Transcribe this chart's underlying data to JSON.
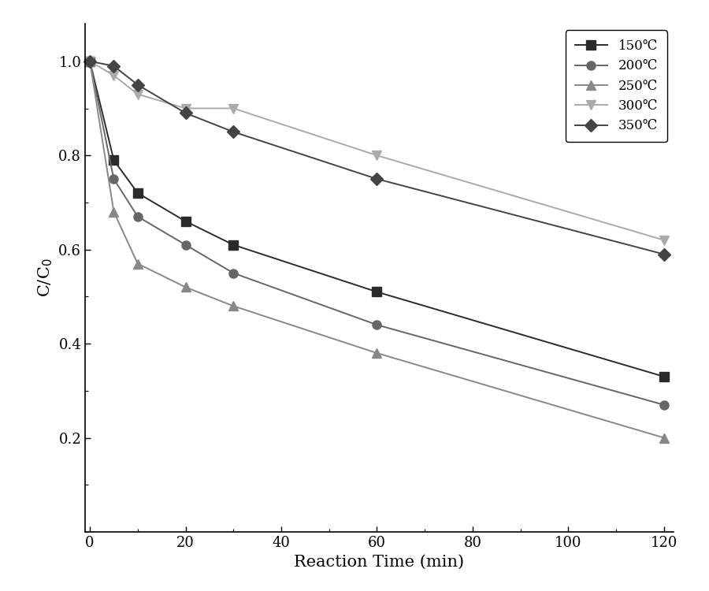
{
  "series": [
    {
      "label": "150℃",
      "color": "#2b2b2b",
      "marker": "s",
      "markersize": 8,
      "linewidth": 1.4,
      "linestyle": "-",
      "x": [
        0,
        5,
        10,
        20,
        30,
        60,
        120
      ],
      "y": [
        1.0,
        0.79,
        0.72,
        0.66,
        0.61,
        0.51,
        0.33
      ]
    },
    {
      "label": "200℃",
      "color": "#666666",
      "marker": "o",
      "markersize": 8,
      "linewidth": 1.4,
      "linestyle": "-",
      "x": [
        0,
        5,
        10,
        20,
        30,
        60,
        120
      ],
      "y": [
        1.0,
        0.75,
        0.67,
        0.61,
        0.55,
        0.44,
        0.27
      ]
    },
    {
      "label": "250℃",
      "color": "#888888",
      "marker": "^",
      "markersize": 8,
      "linewidth": 1.4,
      "linestyle": "-",
      "x": [
        0,
        5,
        10,
        20,
        30,
        60,
        120
      ],
      "y": [
        1.0,
        0.68,
        0.57,
        0.52,
        0.48,
        0.38,
        0.2
      ]
    },
    {
      "label": "300℃",
      "color": "#aaaaaa",
      "marker": "v",
      "markersize": 8,
      "linewidth": 1.4,
      "linestyle": "-",
      "x": [
        0,
        5,
        10,
        20,
        30,
        60,
        120
      ],
      "y": [
        1.0,
        0.97,
        0.93,
        0.9,
        0.9,
        0.8,
        0.62
      ]
    },
    {
      "label": "350℃",
      "color": "#444444",
      "marker": "D",
      "markersize": 8,
      "linewidth": 1.4,
      "linestyle": "-",
      "x": [
        0,
        5,
        10,
        20,
        30,
        60,
        120
      ],
      "y": [
        1.0,
        0.99,
        0.95,
        0.89,
        0.85,
        0.75,
        0.59
      ]
    }
  ],
  "xlabel": "Reaction Time (min)",
  "ylabel": "C/C$_0$",
  "xlim": [
    -1,
    122
  ],
  "ylim": [
    0.0,
    1.08
  ],
  "xticks": [
    0,
    20,
    40,
    60,
    80,
    100,
    120
  ],
  "yticks": [
    0.2,
    0.4,
    0.6,
    0.8,
    1.0
  ],
  "legend_loc": "upper right",
  "fontsize_axis_label": 15,
  "fontsize_tick": 13,
  "fontsize_legend": 12,
  "figure_facecolor": "#ffffff",
  "axes_facecolor": "#ffffff",
  "figwidth": 9.0,
  "figheight": 7.5,
  "dpi": 100
}
